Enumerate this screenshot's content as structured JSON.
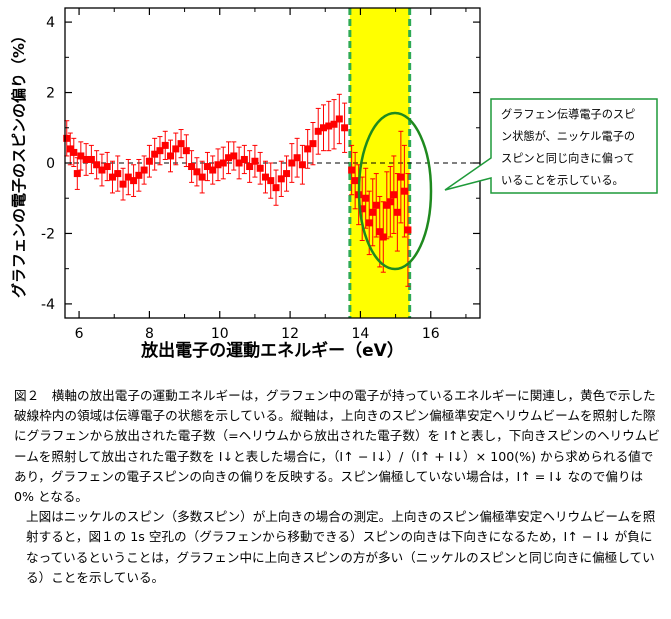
{
  "chart_data": {
    "type": "scatter",
    "xlabel": "放出電子の運動エネルギー（eV）",
    "ylabel": "グラフェンの電子のスピンの偏り（%）",
    "xlim": [
      5.6,
      17.4
    ],
    "ylim": [
      -4.4,
      4.4
    ],
    "xticks": [
      "6",
      "8",
      "10",
      "12",
      "14",
      "16"
    ],
    "yticks": [
      "4",
      "2",
      "0",
      "-2",
      "-4"
    ],
    "xtick_values": [
      6,
      8,
      10,
      12,
      14,
      16
    ],
    "ytick_values": [
      4,
      2,
      0,
      -2,
      -4
    ],
    "zero_line": "dashed",
    "highlight_band": {
      "x": [
        13.7,
        15.4
      ],
      "color": "#ffff00",
      "border": "#2eaa55"
    },
    "marker_color": "#ff0000",
    "ellipse_color": "#1f8a1f",
    "series": [
      {
        "points": [
          [
            5.65,
            0.7,
            0.5
          ],
          [
            5.75,
            0.4,
            0.45
          ],
          [
            5.85,
            0.3,
            0.4
          ],
          [
            5.95,
            -0.3,
            0.45
          ],
          [
            6.05,
            0.2,
            0.4
          ],
          [
            6.2,
            0.1,
            0.45
          ],
          [
            6.35,
            0.1,
            0.4
          ],
          [
            6.5,
            -0.05,
            0.4
          ],
          [
            6.65,
            -0.2,
            0.45
          ],
          [
            6.8,
            -0.1,
            0.4
          ],
          [
            6.95,
            -0.4,
            0.45
          ],
          [
            7.1,
            -0.3,
            0.5
          ],
          [
            7.25,
            -0.6,
            0.45
          ],
          [
            7.4,
            -0.4,
            0.5
          ],
          [
            7.55,
            -0.5,
            0.45
          ],
          [
            7.7,
            -0.35,
            0.45
          ],
          [
            7.85,
            -0.2,
            0.4
          ],
          [
            8.0,
            0.05,
            0.45
          ],
          [
            8.15,
            0.25,
            0.45
          ],
          [
            8.3,
            0.35,
            0.4
          ],
          [
            8.45,
            0.5,
            0.4
          ],
          [
            8.6,
            0.2,
            0.45
          ],
          [
            8.75,
            0.4,
            0.45
          ],
          [
            8.9,
            0.55,
            0.4
          ],
          [
            9.05,
            0.35,
            0.45
          ],
          [
            9.2,
            -0.1,
            0.45
          ],
          [
            9.35,
            -0.25,
            0.4
          ],
          [
            9.5,
            -0.4,
            0.45
          ],
          [
            9.65,
            -0.1,
            0.4
          ],
          [
            9.8,
            -0.2,
            0.4
          ],
          [
            9.95,
            -0.05,
            0.45
          ],
          [
            10.1,
            0.0,
            0.45
          ],
          [
            10.25,
            0.15,
            0.45
          ],
          [
            10.4,
            0.2,
            0.4
          ],
          [
            10.55,
            0.0,
            0.45
          ],
          [
            10.7,
            0.1,
            0.4
          ],
          [
            10.85,
            -0.1,
            0.45
          ],
          [
            11.0,
            0.05,
            0.45
          ],
          [
            11.15,
            -0.15,
            0.45
          ],
          [
            11.3,
            -0.4,
            0.45
          ],
          [
            11.45,
            -0.5,
            0.5
          ],
          [
            11.6,
            -0.7,
            0.5
          ],
          [
            11.75,
            -0.45,
            0.5
          ],
          [
            11.9,
            -0.3,
            0.5
          ],
          [
            12.05,
            0.0,
            0.55
          ],
          [
            12.2,
            0.15,
            0.55
          ],
          [
            12.35,
            -0.05,
            0.55
          ],
          [
            12.5,
            0.4,
            0.55
          ],
          [
            12.65,
            0.55,
            0.6
          ],
          [
            12.8,
            0.9,
            0.65
          ],
          [
            12.95,
            1.0,
            0.65
          ],
          [
            13.1,
            1.05,
            0.7
          ],
          [
            13.25,
            1.1,
            0.7
          ],
          [
            13.4,
            1.25,
            0.7
          ],
          [
            13.55,
            1.0,
            0.7
          ],
          [
            13.75,
            -0.2,
            0.7
          ],
          [
            13.85,
            -0.5,
            0.8
          ],
          [
            13.95,
            -0.9,
            0.85
          ],
          [
            14.05,
            -1.3,
            0.9
          ],
          [
            14.15,
            -1.0,
            0.85
          ],
          [
            14.25,
            -1.7,
            0.9
          ],
          [
            14.35,
            -1.4,
            0.95
          ],
          [
            14.45,
            -1.2,
            0.9
          ],
          [
            14.55,
            -1.95,
            1.0
          ],
          [
            14.65,
            -2.1,
            1.0
          ],
          [
            14.75,
            -1.2,
            0.95
          ],
          [
            14.85,
            -1.1,
            1.0
          ],
          [
            14.95,
            -0.9,
            1.1
          ],
          [
            15.05,
            -1.4,
            1.1
          ],
          [
            15.15,
            -0.4,
            1.3
          ],
          [
            15.25,
            -0.8,
            1.3
          ],
          [
            15.35,
            -1.9,
            1.6
          ]
        ]
      }
    ]
  },
  "callout": {
    "text_lines": [
      "グラフェン伝導電子のスピ",
      "ン状態が、ニッケル電子の",
      "スピンと同じ向きに偏って",
      "いることを示している。"
    ],
    "border_color": "#1f9a3a",
    "fill_color": "#ffffff"
  },
  "caption": {
    "p1": "図２　横軸の放出電子の運動エネルギーは，グラフェン中の電子が持っているエネルギーに関連し，黄色で示した破線枠内の領域は伝導電子の状態を示している。縦軸は，上向きのスピン偏極準安定ヘリウムビームを照射した際にグラフェンから放出された電子数（=ヘリウムから放出された電子数）を I↑と表し，下向きスピンのヘリウムビームを照射して放出された電子数を I↓と表した場合に，（I↑ − I↓）/（I↑ + I↓）× 100(%) から求められる値であり，グラフェンの電子スピンの向きの偏りを反映する。スピン偏極していない場合は，I↑ = I↓ なので偏りは 0% となる。",
    "p2": "上図はニッケルのスピン（多数スピン）が上向きの場合の測定。上向きのスピン偏極準安定ヘリウムビームを照射すると，図１の 1s 空孔の（グラフェンから移動できる）スピンの向きは下向きになるため，I↑ − I↓ が負になっているということは，グラフェン中に上向きスピンの方が多い（ニッケルのスピンと同じ向きに偏極している）ことを示している。"
  }
}
